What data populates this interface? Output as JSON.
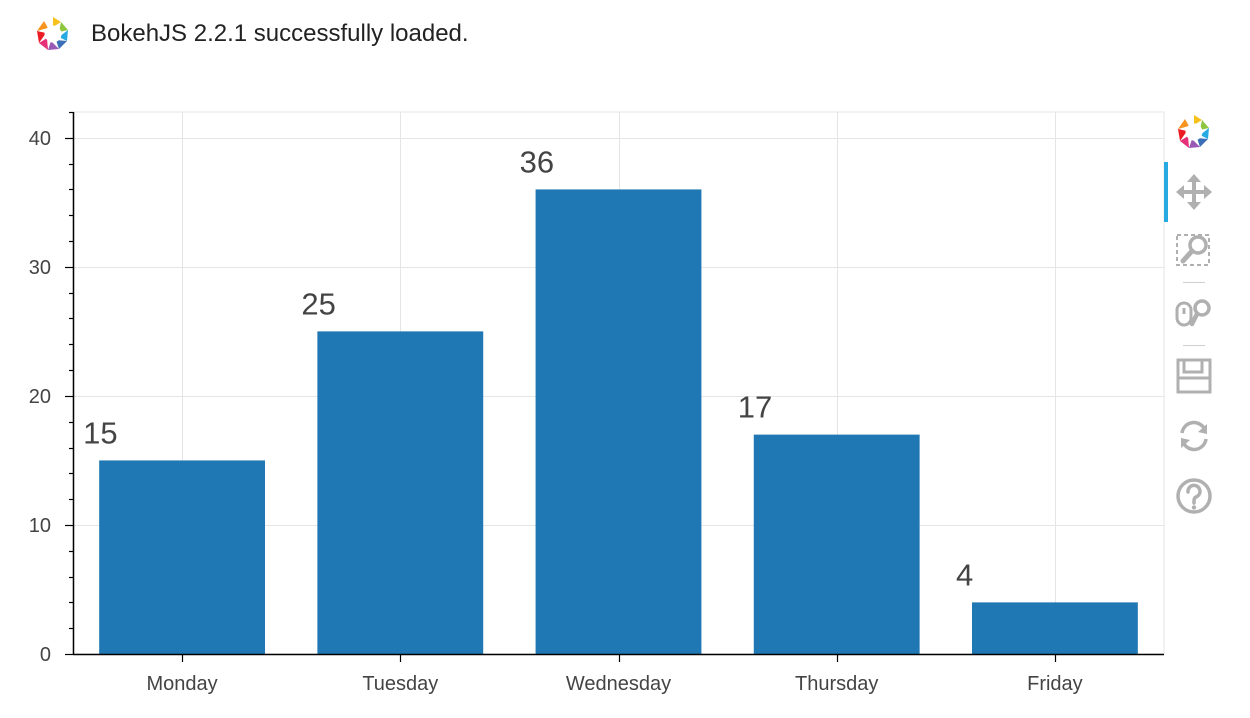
{
  "banner": {
    "text": "BokehJS 2.2.1 successfully loaded.",
    "logo_icon": "bokeh-logo-icon"
  },
  "toolbar": {
    "tools": [
      {
        "name": "bokeh-logo-icon",
        "active": false
      },
      {
        "name": "pan-icon",
        "active": true
      },
      {
        "name": "box-zoom-icon",
        "active": false
      },
      {
        "name": "wheel-zoom-icon",
        "active": false
      },
      {
        "name": "save-icon",
        "active": false
      },
      {
        "name": "reset-icon",
        "active": false
      },
      {
        "name": "help-icon",
        "active": false
      }
    ],
    "active_color": "#26aae1",
    "icon_color": "#b0b0b0"
  },
  "chart_data": {
    "type": "bar",
    "categories": [
      "Monday",
      "Tuesday",
      "Wednesday",
      "Thursday",
      "Friday"
    ],
    "values": [
      15,
      25,
      36,
      17,
      4
    ],
    "data_labels": [
      "15",
      "25",
      "36",
      "17",
      "4"
    ],
    "ylim": [
      0,
      42
    ],
    "yticks": [
      0,
      10,
      20,
      30,
      40
    ],
    "grid": true,
    "bar_color": "#1f77b4",
    "title": "",
    "xlabel": "",
    "ylabel": ""
  }
}
